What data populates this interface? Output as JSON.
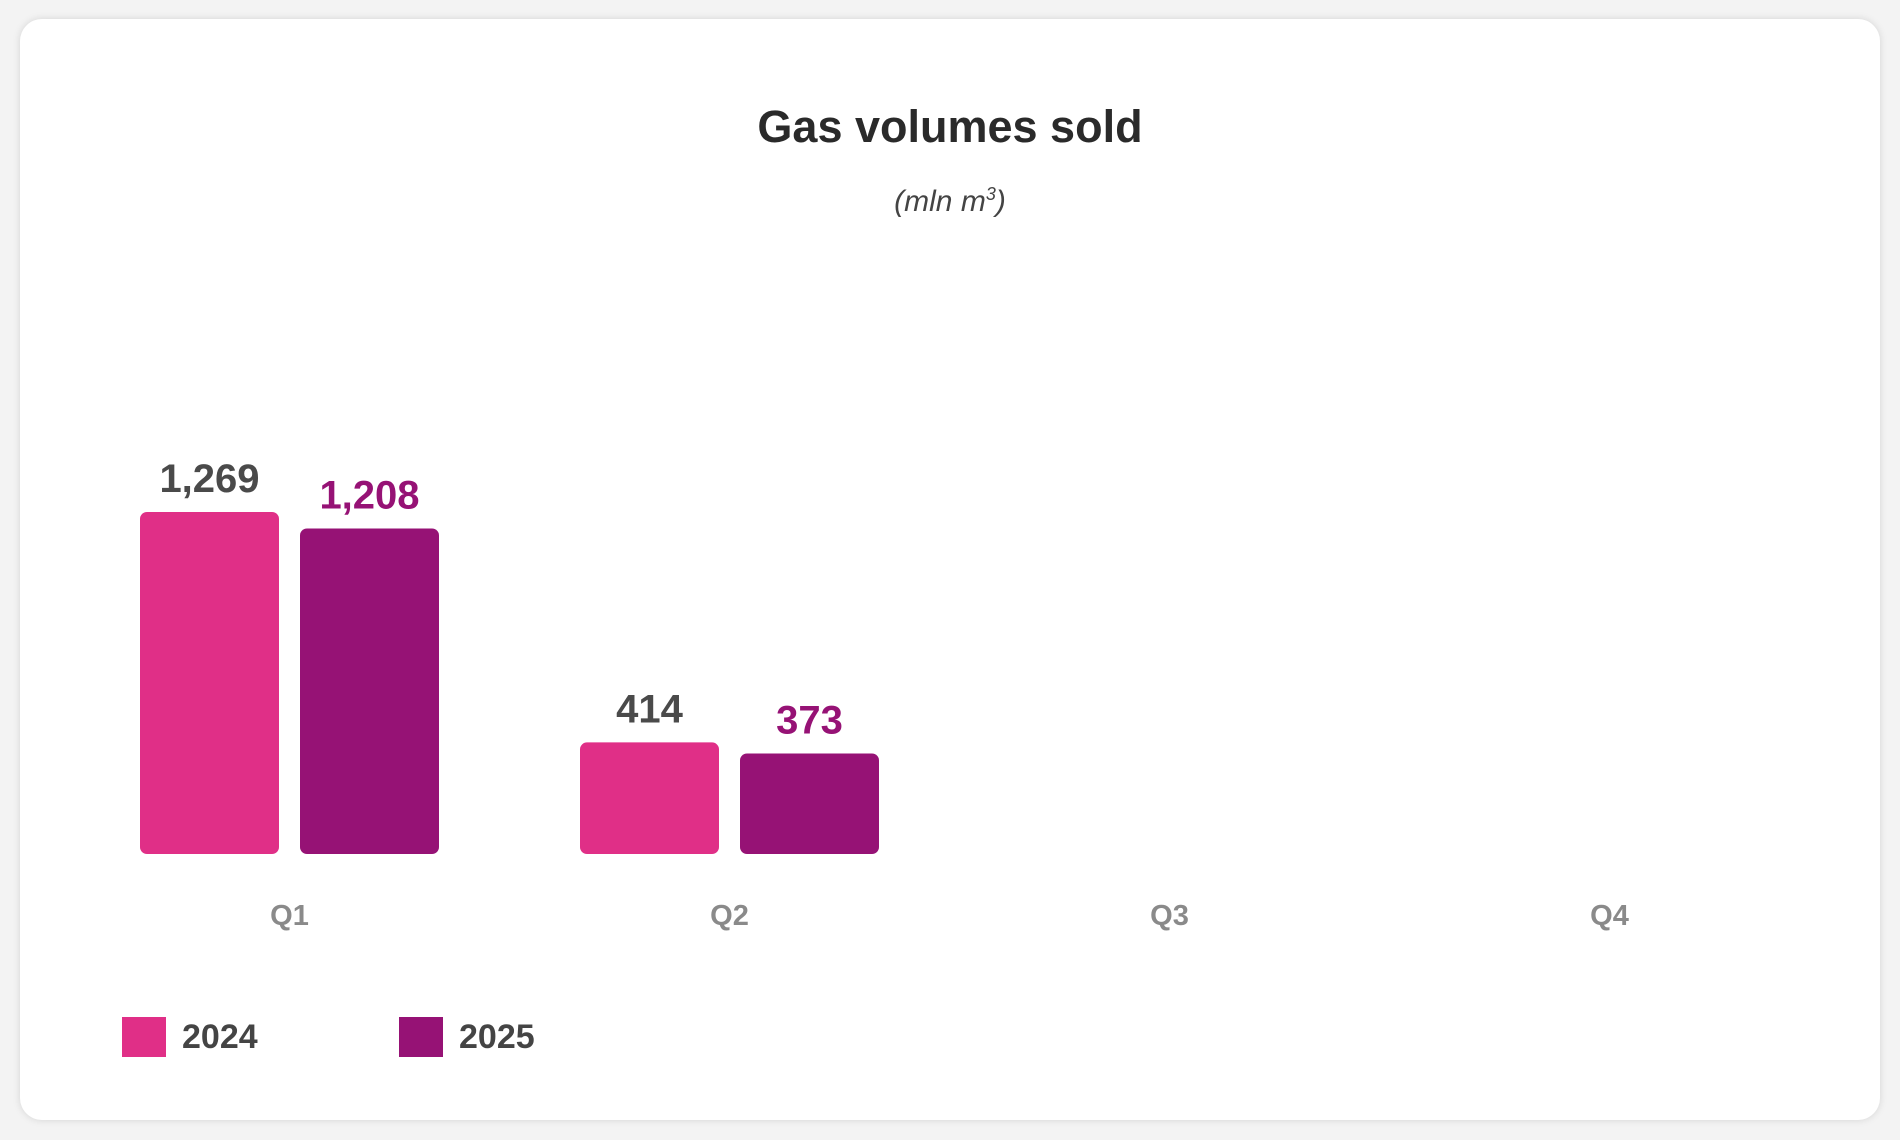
{
  "chart_data": {
    "type": "bar",
    "title": "Gas volumes sold",
    "subtitle_prefix": "(mln m",
    "subtitle_sup": "3",
    "subtitle_suffix": ")",
    "categories": [
      "Q1",
      "Q2",
      "Q3",
      "Q4"
    ],
    "series": [
      {
        "name": "2024",
        "color": "#e02f87",
        "label_color": "#4a4a4a",
        "values": [
          1269,
          414,
          null,
          null
        ],
        "labels": [
          "1,269",
          "414",
          "",
          ""
        ]
      },
      {
        "name": "2025",
        "color": "#961275",
        "label_color": "#961275",
        "values": [
          1208,
          373,
          null,
          null
        ],
        "labels": [
          "1,208",
          "373",
          "",
          ""
        ]
      }
    ],
    "xlabel": "",
    "ylabel": "",
    "grid": false,
    "legend_position": "bottom-left"
  }
}
